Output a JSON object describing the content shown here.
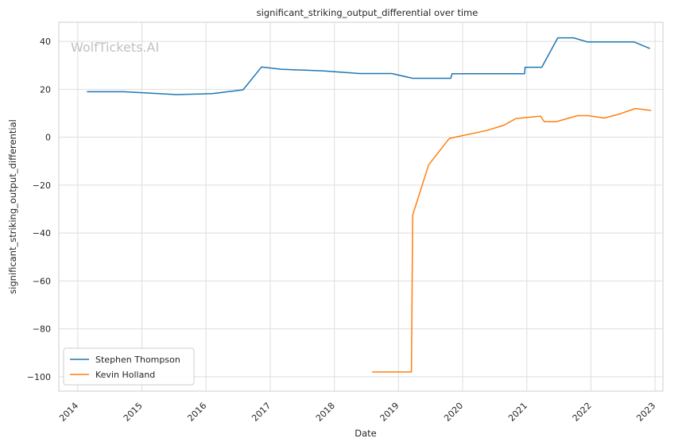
{
  "chart_data": {
    "type": "line",
    "title": "significant_striking_output_differential over time",
    "xlabel": "Date",
    "ylabel": "significant_striking_output_differential",
    "watermark": "WolfTickets.AI",
    "xlim": [
      "2013-09-15",
      "2023-02-15"
    ],
    "ylim": [
      -106,
      48
    ],
    "x_ticks": [
      "2014-01-01",
      "2015-01-01",
      "2016-01-01",
      "2017-01-01",
      "2018-01-01",
      "2019-01-01",
      "2020-01-01",
      "2021-01-01",
      "2022-01-01",
      "2023-01-01"
    ],
    "x_tick_labels": [
      "2014",
      "2015",
      "2016",
      "2017",
      "2018",
      "2019",
      "2020",
      "2021",
      "2022",
      "2023"
    ],
    "y_ticks": [
      40,
      20,
      0,
      -20,
      -40,
      -60,
      -80,
      -100
    ],
    "y_tick_labels": [
      "40",
      "20",
      "0",
      "−20",
      "−40",
      "−60",
      "−80",
      "−100"
    ],
    "grid": true,
    "legend_position": "lower-left",
    "series": [
      {
        "name": "Stephen Thompson",
        "color": "#1f77b4",
        "points": [
          [
            "2014-02-22",
            19.0
          ],
          [
            "2014-09-20",
            19.0
          ],
          [
            "2015-07-18",
            17.8
          ],
          [
            "2016-02-06",
            18.2
          ],
          [
            "2016-07-30",
            19.8
          ],
          [
            "2016-11-12",
            29.3
          ],
          [
            "2017-03-04",
            28.4
          ],
          [
            "2017-11-04",
            27.7
          ],
          [
            "2018-05-26",
            26.6
          ],
          [
            "2018-11-24",
            26.6
          ],
          [
            "2019-03-23",
            24.6
          ],
          [
            "2019-10-26",
            24.6
          ],
          [
            "2019-11-02",
            26.5
          ],
          [
            "2020-12-19",
            26.5
          ],
          [
            "2020-12-22",
            29.2
          ],
          [
            "2021-03-27",
            29.2
          ],
          [
            "2021-06-26",
            41.5
          ],
          [
            "2021-09-25",
            41.5
          ],
          [
            "2021-12-11",
            39.8
          ],
          [
            "2022-09-03",
            39.8
          ],
          [
            "2022-12-03",
            37.0
          ]
        ]
      },
      {
        "name": "Kevin Holland",
        "color": "#ff7f0e",
        "points": [
          [
            "2018-08-04",
            -98.0
          ],
          [
            "2019-03-16",
            -98.0
          ],
          [
            "2019-03-23",
            -32.5
          ],
          [
            "2019-06-22",
            -11.5
          ],
          [
            "2019-10-18",
            -0.5
          ],
          [
            "2020-05-16",
            2.8
          ],
          [
            "2020-08-22",
            5.0
          ],
          [
            "2020-10-31",
            7.8
          ],
          [
            "2021-03-20",
            8.8
          ],
          [
            "2021-04-10",
            6.5
          ],
          [
            "2021-06-19",
            6.5
          ],
          [
            "2021-10-16",
            9.0
          ],
          [
            "2021-12-18",
            9.0
          ],
          [
            "2022-03-19",
            8.0
          ],
          [
            "2022-06-18",
            9.8
          ],
          [
            "2022-09-10",
            12.0
          ],
          [
            "2022-12-10",
            11.2
          ]
        ]
      }
    ]
  }
}
